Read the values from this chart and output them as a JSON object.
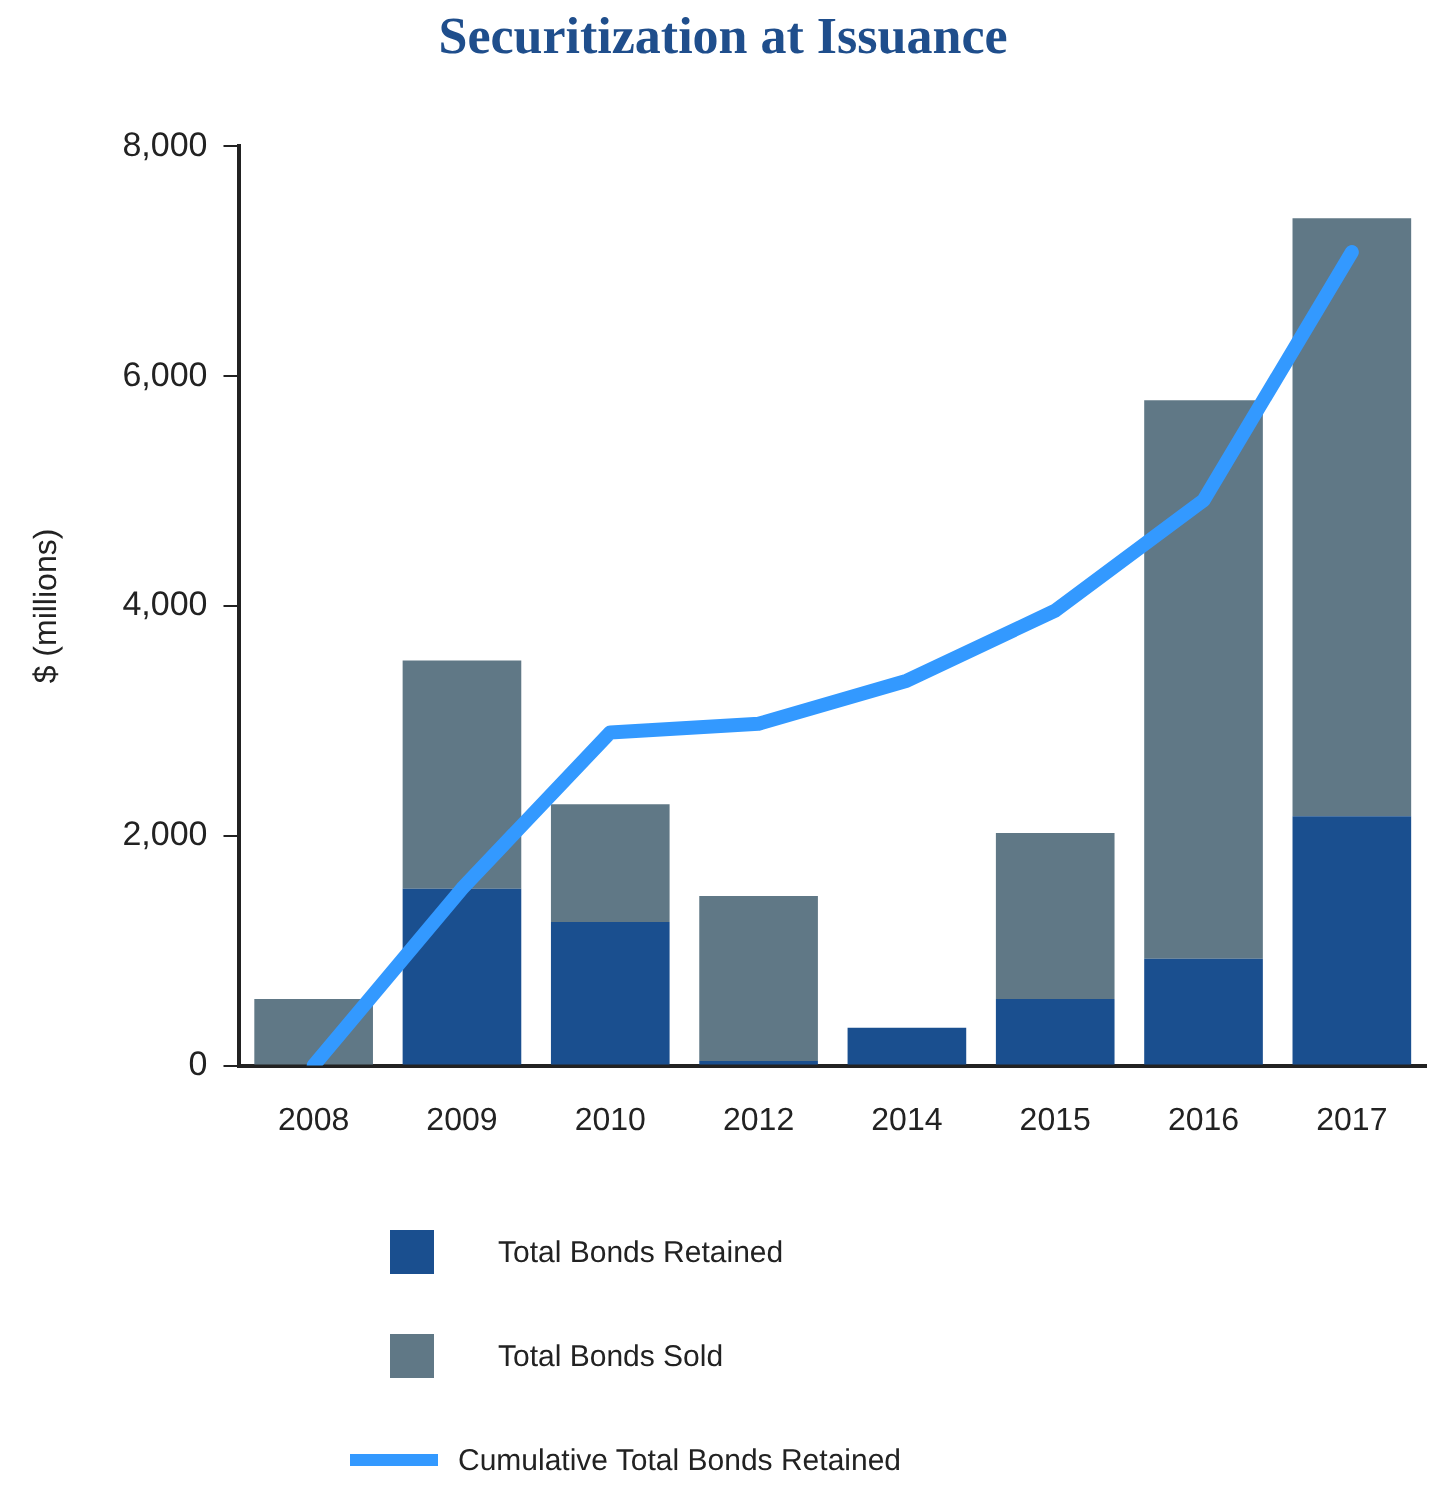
{
  "chart_data": {
    "type": "bar",
    "title": "Securitization at Issuance",
    "ylabel": "$ (millions)",
    "stacked": true,
    "categories": [
      "2008",
      "2009",
      "2010",
      "2012",
      "2014",
      "2015",
      "2016",
      "2017"
    ],
    "series": [
      {
        "name": "Total Bonds Retained",
        "color": "#1a4f8f",
        "values": [
          0,
          1540,
          1250,
          40,
          330,
          580,
          930,
          2170
        ]
      },
      {
        "name": "Total Bonds Sold",
        "color": "#607886",
        "values": [
          580,
          1985,
          1025,
          1435,
          0,
          1445,
          4860,
          5205
        ]
      },
      {
        "name": "Cumulative Total Bonds Retained",
        "type": "line",
        "color": "#3399ff",
        "values": [
          0,
          1540,
          2900,
          2975,
          3350,
          3960,
          4920,
          7080
        ]
      }
    ],
    "ylim": [
      0,
      8000
    ],
    "yticks": [
      {
        "value": 0,
        "label": "0"
      },
      {
        "value": 2000,
        "label": "2,000"
      },
      {
        "value": 4000,
        "label": "4,000"
      },
      {
        "value": 6000,
        "label": "6,000"
      },
      {
        "value": 8000,
        "label": "8,000"
      }
    ],
    "grid": false,
    "legend": "bottom",
    "marker": "none"
  }
}
